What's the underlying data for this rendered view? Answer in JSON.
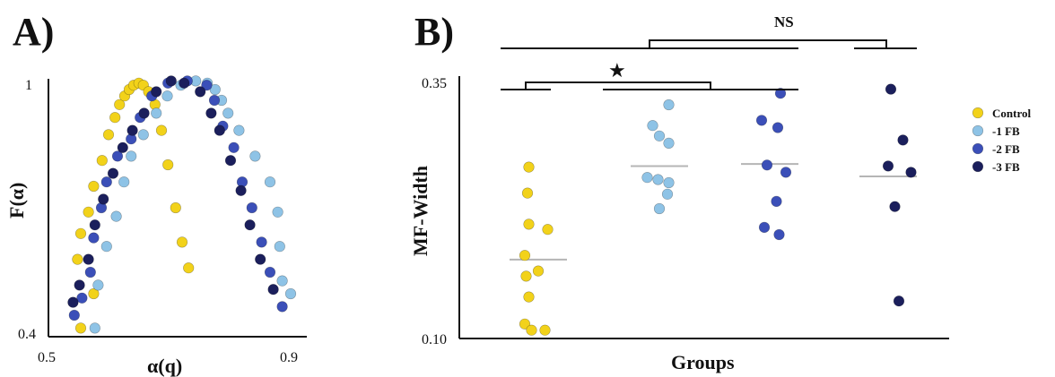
{
  "colors": {
    "Control": "#f2d21a",
    "-1 FB": "#8ec3e6",
    "-2 FB": "#3b4fb8",
    "-3 FB": "#1b1f5c",
    "median_line": "#b5b5b5"
  },
  "panels": {
    "a_label": "A)",
    "b_label": "B)"
  },
  "significance": {
    "ns_label": "NS",
    "star_label": "★"
  },
  "chart_data": [
    {
      "type": "scatter",
      "panel": "A",
      "xlabel": "α(q)",
      "ylabel": "F(α)",
      "xlim": [
        0.5,
        0.9
      ],
      "ylim": [
        0.4,
        1.0
      ],
      "xtick_labels": [
        "0.5",
        "0.9"
      ],
      "ytick_labels": [
        "1",
        "0.4"
      ],
      "series": [
        {
          "name": "Control",
          "points": [
            [
              0.545,
              0.58
            ],
            [
              0.55,
              0.64
            ],
            [
              0.562,
              0.69
            ],
            [
              0.57,
              0.75
            ],
            [
              0.583,
              0.81
            ],
            [
              0.593,
              0.87
            ],
            [
              0.603,
              0.91
            ],
            [
              0.61,
              0.94
            ],
            [
              0.618,
              0.96
            ],
            [
              0.625,
              0.975
            ],
            [
              0.632,
              0.985
            ],
            [
              0.64,
              0.99
            ],
            [
              0.647,
              0.985
            ],
            [
              0.655,
              0.97
            ],
            [
              0.665,
              0.94
            ],
            [
              0.675,
              0.88
            ],
            [
              0.685,
              0.8
            ],
            [
              0.697,
              0.7
            ],
            [
              0.707,
              0.62
            ],
            [
              0.717,
              0.56
            ],
            [
              0.55,
              0.42
            ],
            [
              0.57,
              0.5
            ]
          ]
        },
        {
          "name": "-1 FB",
          "points": [
            [
              0.572,
              0.42
            ],
            [
              0.577,
              0.52
            ],
            [
              0.59,
              0.61
            ],
            [
              0.605,
              0.68
            ],
            [
              0.617,
              0.76
            ],
            [
              0.628,
              0.82
            ],
            [
              0.647,
              0.87
            ],
            [
              0.667,
              0.92
            ],
            [
              0.684,
              0.96
            ],
            [
              0.705,
              0.985
            ],
            [
              0.728,
              0.995
            ],
            [
              0.746,
              0.99
            ],
            [
              0.758,
              0.975
            ],
            [
              0.768,
              0.95
            ],
            [
              0.778,
              0.92
            ],
            [
              0.795,
              0.88
            ],
            [
              0.82,
              0.82
            ],
            [
              0.843,
              0.76
            ],
            [
              0.855,
              0.69
            ],
            [
              0.858,
              0.61
            ],
            [
              0.862,
              0.53
            ],
            [
              0.875,
              0.5
            ]
          ]
        },
        {
          "name": "-2 FB",
          "points": [
            [
              0.54,
              0.45
            ],
            [
              0.552,
              0.49
            ],
            [
              0.565,
              0.55
            ],
            [
              0.57,
              0.63
            ],
            [
              0.582,
              0.7
            ],
            [
              0.59,
              0.76
            ],
            [
              0.607,
              0.82
            ],
            [
              0.628,
              0.86
            ],
            [
              0.642,
              0.91
            ],
            [
              0.66,
              0.96
            ],
            [
              0.685,
              0.99
            ],
            [
              0.715,
              0.995
            ],
            [
              0.745,
              0.985
            ],
            [
              0.757,
              0.95
            ],
            [
              0.77,
              0.89
            ],
            [
              0.787,
              0.84
            ],
            [
              0.8,
              0.76
            ],
            [
              0.815,
              0.7
            ],
            [
              0.83,
              0.62
            ],
            [
              0.843,
              0.55
            ],
            [
              0.862,
              0.47
            ]
          ]
        },
        {
          "name": "-3 FB",
          "points": [
            [
              0.538,
              0.48
            ],
            [
              0.548,
              0.52
            ],
            [
              0.562,
              0.58
            ],
            [
              0.572,
              0.66
            ],
            [
              0.585,
              0.72
            ],
            [
              0.6,
              0.78
            ],
            [
              0.615,
              0.84
            ],
            [
              0.63,
              0.88
            ],
            [
              0.648,
              0.92
            ],
            [
              0.667,
              0.97
            ],
            [
              0.69,
              0.995
            ],
            [
              0.71,
              0.99
            ],
            [
              0.735,
              0.97
            ],
            [
              0.752,
              0.92
            ],
            [
              0.765,
              0.88
            ],
            [
              0.782,
              0.81
            ],
            [
              0.798,
              0.74
            ],
            [
              0.812,
              0.66
            ],
            [
              0.828,
              0.58
            ],
            [
              0.848,
              0.51
            ]
          ]
        }
      ]
    },
    {
      "type": "scatter",
      "panel": "B",
      "xlabel": "Groups",
      "ylabel": "MF-Width",
      "ylim": [
        0.1,
        0.35
      ],
      "ytick_labels": [
        "0.35",
        "0.10"
      ],
      "legend": [
        "Control",
        "-1 FB",
        "-2 FB",
        "-3 FB"
      ],
      "legend_position": "right",
      "series": [
        {
          "name": "Control",
          "median": 0.176,
          "points": [
            [
              -0.35,
              0.265
            ],
            [
              -0.4,
              0.24
            ],
            [
              -0.5,
              0.18
            ],
            [
              -0.35,
              0.21
            ],
            [
              0.35,
              0.205
            ],
            [
              -0.45,
              0.16
            ],
            [
              0.0,
              0.165
            ],
            [
              -0.35,
              0.14
            ],
            [
              -0.5,
              0.114
            ],
            [
              -0.25,
              0.108
            ],
            [
              0.25,
              0.108
            ]
          ]
        },
        {
          "name": "-1 FB",
          "median": 0.266,
          "points": [
            [
              0.35,
              0.325
            ],
            [
              -0.25,
              0.305
            ],
            [
              0.0,
              0.295
            ],
            [
              0.35,
              0.288
            ],
            [
              -0.45,
              0.255
            ],
            [
              0.35,
              0.25
            ],
            [
              -0.05,
              0.253
            ],
            [
              0.3,
              0.239
            ],
            [
              0.0,
              0.225
            ]
          ]
        },
        {
          "name": "-2 FB",
          "median": 0.268,
          "points": [
            [
              0.4,
              0.336
            ],
            [
              -0.3,
              0.31
            ],
            [
              0.3,
              0.303
            ],
            [
              -0.1,
              0.267
            ],
            [
              0.6,
              0.26
            ],
            [
              0.25,
              0.232
            ],
            [
              -0.2,
              0.207
            ],
            [
              0.35,
              0.2
            ]
          ]
        },
        {
          "name": "-3 FB",
          "median": 0.256,
          "points": [
            [
              0.1,
              0.34
            ],
            [
              0.55,
              0.291
            ],
            [
              0.0,
              0.266
            ],
            [
              0.85,
              0.26
            ],
            [
              0.25,
              0.227
            ],
            [
              0.4,
              0.136
            ]
          ]
        }
      ]
    }
  ]
}
